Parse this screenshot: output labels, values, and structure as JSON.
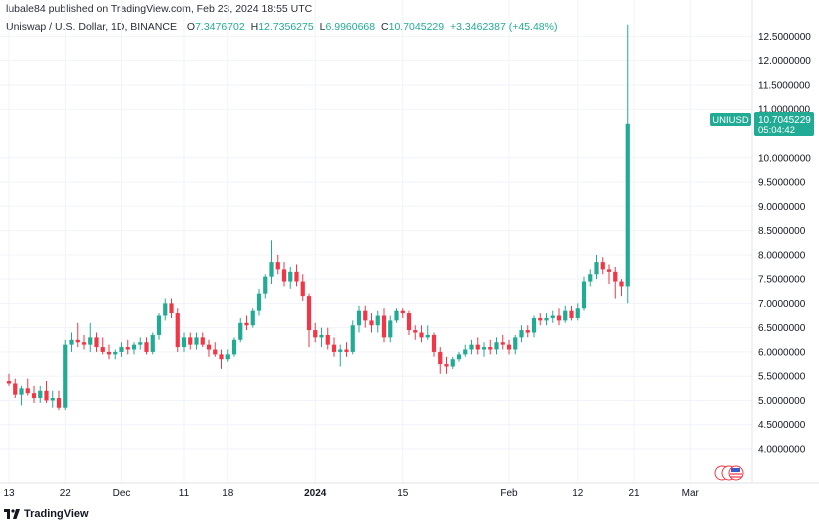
{
  "header": {
    "published": "lubale84 published on TradingView.com, Feb 23, 2024 18:55 UTC",
    "symbol_line": "Uniswap / U.S. Dollar, 1D, BINANCE",
    "ohlc": {
      "o_label": "O",
      "o_value": "7.3476702",
      "h_label": "H",
      "h_value": "12.7356275",
      "l_label": "L",
      "l_value": "6.9960668",
      "c_label": "C",
      "c_value": "10.7045229",
      "change": "+3.3462387 (+45.48%)"
    }
  },
  "price_tag": {
    "symbol": "UNIUSD",
    "price": "10.7045229",
    "countdown": "05:04:42"
  },
  "footer": {
    "brand": "TradingView"
  },
  "colors": {
    "up": "#22ab94",
    "down": "#f23645",
    "grid": "#f0f3fa",
    "text": "#131722"
  },
  "chart_data": {
    "type": "candlestick",
    "y_axis_labels": [
      "12.5000000",
      "12.0000000",
      "11.5000000",
      "11.0000000",
      "10.0000000",
      "9.5000000",
      "9.0000000",
      "8.5000000",
      "8.0000000",
      "7.5000000",
      "7.0000000",
      "6.5000000",
      "6.0000000",
      "5.5000000",
      "5.0000000",
      "4.5000000",
      "4.0000000"
    ],
    "y_axis_values": [
      12.5,
      12.0,
      11.5,
      11.0,
      10.0,
      9.5,
      9.0,
      8.5,
      8.0,
      7.5,
      7.0,
      6.5,
      6.0,
      5.5,
      5.0,
      4.5,
      4.0
    ],
    "ylim": [
      3.3,
      13.25
    ],
    "x_axis_labels": [
      {
        "label": "13",
        "bar": 0,
        "bold": false
      },
      {
        "label": "22",
        "bar": 9,
        "bold": false
      },
      {
        "label": "Dec",
        "bar": 18,
        "bold": false
      },
      {
        "label": "11",
        "bar": 28,
        "bold": false
      },
      {
        "label": "18",
        "bar": 35,
        "bold": false
      },
      {
        "label": "2024",
        "bar": 49,
        "bold": true
      },
      {
        "label": "15",
        "bar": 63,
        "bold": false
      },
      {
        "label": "Feb",
        "bar": 80,
        "bold": false
      },
      {
        "label": "12",
        "bar": 91,
        "bold": false
      },
      {
        "label": "21",
        "bar": 100,
        "bold": false
      },
      {
        "label": "Mar",
        "bar": 109,
        "bold": false
      }
    ],
    "candles": [
      [
        5.4,
        5.55,
        5.3,
        5.35
      ],
      [
        5.35,
        5.45,
        5.05,
        5.12
      ],
      [
        5.12,
        5.3,
        4.9,
        5.25
      ],
      [
        5.25,
        5.45,
        5.1,
        5.15
      ],
      [
        5.15,
        5.3,
        4.95,
        5.05
      ],
      [
        5.05,
        5.3,
        4.95,
        5.2
      ],
      [
        5.2,
        5.4,
        4.95,
        5.0
      ],
      [
        5.0,
        5.2,
        4.85,
        5.05
      ],
      [
        5.05,
        5.2,
        4.8,
        4.85
      ],
      [
        4.85,
        6.25,
        4.8,
        6.15
      ],
      [
        6.15,
        6.4,
        6.0,
        6.25
      ],
      [
        6.25,
        6.6,
        6.1,
        6.2
      ],
      [
        6.2,
        6.35,
        6.05,
        6.15
      ],
      [
        6.15,
        6.6,
        6.0,
        6.3
      ],
      [
        6.3,
        6.4,
        6.0,
        6.1
      ],
      [
        6.1,
        6.3,
        5.95,
        6.0
      ],
      [
        6.0,
        6.15,
        5.85,
        5.95
      ],
      [
        5.95,
        6.05,
        5.85,
        6.0
      ],
      [
        6.0,
        6.2,
        5.9,
        6.1
      ],
      [
        6.1,
        6.25,
        5.95,
        6.05
      ],
      [
        6.05,
        6.2,
        5.95,
        6.15
      ],
      [
        6.15,
        6.3,
        6.05,
        6.2
      ],
      [
        6.2,
        6.3,
        5.95,
        6.0
      ],
      [
        6.0,
        6.4,
        5.95,
        6.35
      ],
      [
        6.35,
        6.8,
        6.25,
        6.75
      ],
      [
        6.75,
        7.1,
        6.65,
        7.0
      ],
      [
        7.0,
        7.1,
        6.7,
        6.8
      ],
      [
        6.8,
        6.9,
        6.0,
        6.1
      ],
      [
        6.1,
        6.4,
        6.0,
        6.3
      ],
      [
        6.3,
        6.4,
        6.05,
        6.15
      ],
      [
        6.15,
        6.4,
        6.05,
        6.3
      ],
      [
        6.3,
        6.4,
        6.1,
        6.15
      ],
      [
        6.15,
        6.25,
        5.9,
        6.05
      ],
      [
        6.05,
        6.2,
        5.9,
        5.95
      ],
      [
        5.95,
        6.05,
        5.65,
        5.85
      ],
      [
        5.85,
        6.05,
        5.8,
        5.95
      ],
      [
        5.95,
        6.3,
        5.9,
        6.25
      ],
      [
        6.25,
        6.7,
        6.2,
        6.6
      ],
      [
        6.6,
        6.75,
        6.45,
        6.55
      ],
      [
        6.55,
        6.9,
        6.5,
        6.85
      ],
      [
        6.85,
        7.3,
        6.75,
        7.2
      ],
      [
        7.2,
        7.6,
        7.1,
        7.55
      ],
      [
        7.55,
        8.3,
        7.4,
        7.85
      ],
      [
        7.85,
        8.0,
        7.6,
        7.7
      ],
      [
        7.7,
        7.85,
        7.35,
        7.45
      ],
      [
        7.45,
        7.75,
        7.3,
        7.65
      ],
      [
        7.65,
        7.8,
        7.35,
        7.45
      ],
      [
        7.45,
        7.6,
        7.05,
        7.15
      ],
      [
        7.15,
        7.2,
        6.1,
        6.45
      ],
      [
        6.45,
        6.6,
        6.2,
        6.3
      ],
      [
        6.3,
        6.5,
        6.1,
        6.35
      ],
      [
        6.35,
        6.5,
        6.05,
        6.15
      ],
      [
        6.15,
        6.3,
        5.9,
        6.0
      ],
      [
        6.0,
        6.15,
        5.7,
        6.05
      ],
      [
        6.05,
        6.2,
        5.9,
        6.0
      ],
      [
        6.0,
        6.65,
        5.95,
        6.55
      ],
      [
        6.55,
        6.95,
        6.4,
        6.85
      ],
      [
        6.85,
        6.95,
        6.5,
        6.65
      ],
      [
        6.65,
        6.8,
        6.4,
        6.55
      ],
      [
        6.55,
        6.85,
        6.4,
        6.75
      ],
      [
        6.75,
        6.9,
        6.2,
        6.3
      ],
      [
        6.3,
        6.75,
        6.2,
        6.65
      ],
      [
        6.65,
        6.9,
        6.6,
        6.85
      ],
      [
        6.85,
        6.9,
        6.7,
        6.8
      ],
      [
        6.8,
        6.85,
        6.35,
        6.45
      ],
      [
        6.45,
        6.55,
        6.25,
        6.4
      ],
      [
        6.4,
        6.55,
        6.2,
        6.3
      ],
      [
        6.3,
        6.55,
        6.25,
        6.35
      ],
      [
        6.35,
        6.4,
        5.9,
        6.0
      ],
      [
        6.0,
        6.1,
        5.55,
        5.75
      ],
      [
        5.75,
        5.9,
        5.55,
        5.7
      ],
      [
        5.7,
        5.9,
        5.65,
        5.85
      ],
      [
        5.85,
        6.0,
        5.8,
        5.95
      ],
      [
        5.95,
        6.15,
        5.9,
        6.05
      ],
      [
        6.05,
        6.25,
        5.95,
        6.15
      ],
      [
        6.15,
        6.3,
        5.95,
        6.05
      ],
      [
        6.05,
        6.2,
        5.9,
        6.1
      ],
      [
        6.1,
        6.25,
        5.95,
        6.05
      ],
      [
        6.05,
        6.3,
        5.95,
        6.2
      ],
      [
        6.2,
        6.35,
        6.05,
        6.15
      ],
      [
        6.15,
        6.25,
        5.95,
        6.05
      ],
      [
        6.05,
        6.35,
        5.95,
        6.3
      ],
      [
        6.3,
        6.55,
        6.2,
        6.45
      ],
      [
        6.45,
        6.55,
        6.3,
        6.4
      ],
      [
        6.4,
        6.75,
        6.3,
        6.7
      ],
      [
        6.7,
        6.8,
        6.55,
        6.65
      ],
      [
        6.65,
        6.8,
        6.55,
        6.7
      ],
      [
        6.7,
        6.85,
        6.6,
        6.75
      ],
      [
        6.75,
        6.9,
        6.55,
        6.65
      ],
      [
        6.65,
        6.95,
        6.6,
        6.85
      ],
      [
        6.85,
        6.95,
        6.65,
        6.7
      ],
      [
        6.7,
        7.0,
        6.65,
        6.9
      ],
      [
        6.9,
        7.55,
        6.85,
        7.45
      ],
      [
        7.45,
        7.7,
        7.35,
        7.6
      ],
      [
        7.6,
        8.0,
        7.5,
        7.85
      ],
      [
        7.85,
        7.95,
        7.6,
        7.7
      ],
      [
        7.7,
        7.8,
        7.4,
        7.65
      ],
      [
        7.65,
        7.75,
        7.1,
        7.45
      ],
      [
        7.45,
        7.5,
        7.15,
        7.35
      ],
      [
        7.35,
        12.74,
        7.0,
        10.7
      ]
    ]
  }
}
